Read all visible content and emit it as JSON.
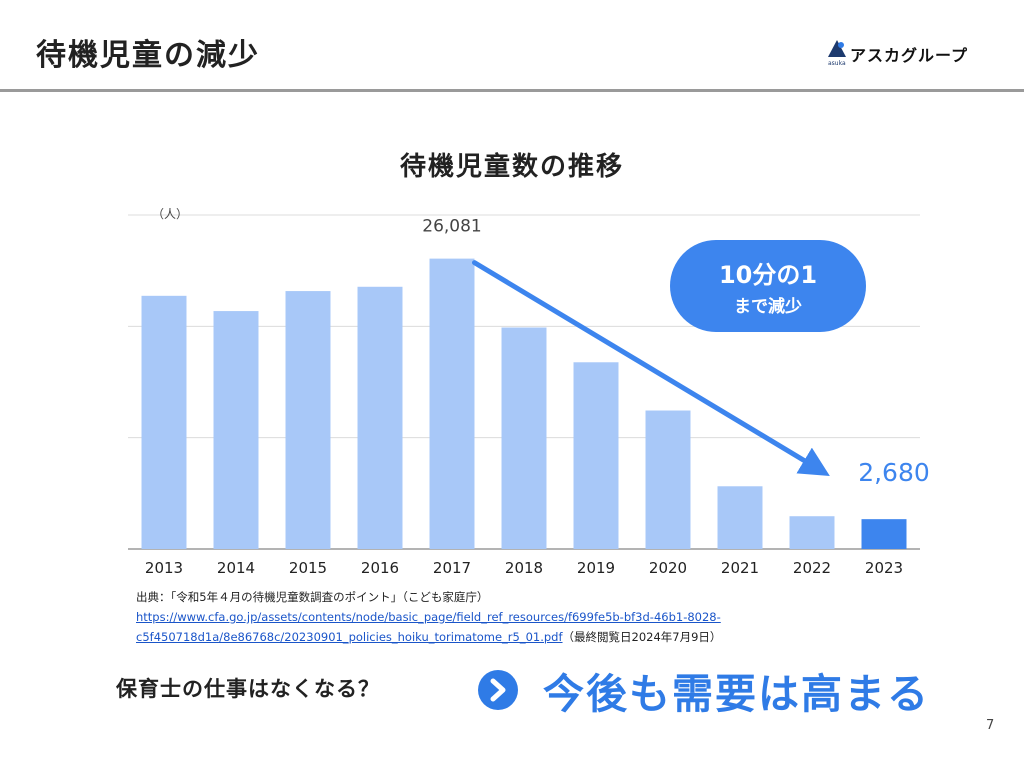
{
  "slide": {
    "title": "待機児童の減少",
    "page_number": "7"
  },
  "logo": {
    "text": "アスカグループ",
    "sub": "asuka"
  },
  "chart_data": {
    "type": "bar",
    "title": "待機児童数の推移",
    "unit_label": "（人）",
    "categories": [
      "2013",
      "2014",
      "2015",
      "2016",
      "2017",
      "2018",
      "2019",
      "2020",
      "2021",
      "2022",
      "2023"
    ],
    "values": [
      22741,
      21371,
      23167,
      23553,
      26081,
      19895,
      16772,
      12439,
      5634,
      2944,
      2680
    ],
    "ylim": [
      0,
      30000
    ],
    "grid": true,
    "data_labels": [
      {
        "category": "2017",
        "text": "26,081"
      },
      {
        "category": "2023",
        "text": "2,680"
      }
    ],
    "colors": {
      "bar": "#a8c8f8",
      "highlight_bar": "#3d85ee",
      "trend_arrow": "#3d85ee"
    },
    "highlight_category": "2023",
    "annotation": {
      "line1": "10分の1",
      "line2": "まで減少"
    }
  },
  "source": {
    "line1": "出典：「令和5年４月の待機児童数調査のポイント」（こども家庭庁）",
    "link_line1": "https://www.cfa.go.jp/assets/contents/node/basic_page/field_ref_resources/f699fe5b-bf3d-46b1-8028-",
    "link_line2": "c5f450718d1a/8e86768c/20230901_policies_hoiku_torimatome_r5_01.pdf",
    "accessed": "（最終閲覧日2024年7月9日）"
  },
  "bottom": {
    "question": "保育士の仕事はなくなる？",
    "answer": "今後も需要は高まる"
  }
}
